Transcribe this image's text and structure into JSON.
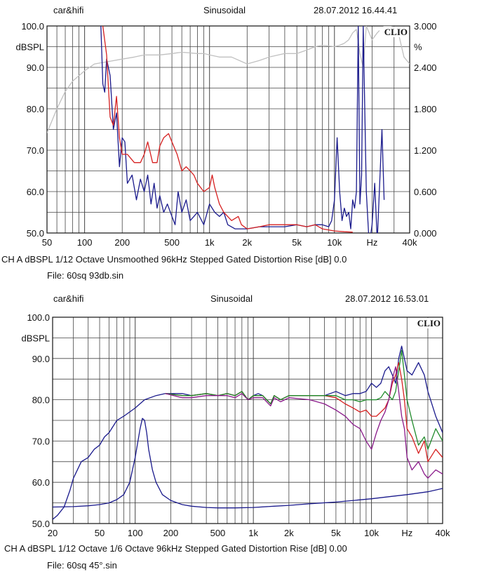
{
  "chart_data": [
    {
      "type": "line",
      "header": {
        "left": "car&hifi",
        "center": "Sinusoidal",
        "right": "28.07.2012 16.44.41"
      },
      "brand": "CLIO",
      "ylabel": "dBSPL",
      "ylabel_right": "%",
      "x_scale": "log",
      "xlim": [
        50,
        40000
      ],
      "ylim": [
        50,
        100
      ],
      "y_right_lim": [
        0,
        3
      ],
      "grid": true,
      "x_ticks": [
        "50",
        "100",
        "200",
        "500",
        "1k",
        "2k",
        "5k",
        "10k",
        "Hz",
        "40k"
      ],
      "y_ticks": [
        "100.0",
        "90.0",
        "80.0",
        "70.0",
        "60.0",
        "50.0"
      ],
      "y_right_ticks": [
        "3.000",
        "2.400",
        "1.800",
        "1.200",
        "0.600",
        "0.000"
      ],
      "info_line": "CH A   dBSPL     1/12 Octave    Unsmoothed    96kHz    Stepped     Gated       Distortion Rise [dB] 0.0",
      "file": "File: 60sq 93db.sin",
      "series": [
        {
          "color": "#c0c0c0",
          "axis": "right",
          "x": [
            50,
            60,
            70,
            80,
            100,
            120,
            150,
            200,
            250,
            300,
            400,
            500,
            600,
            800,
            900,
            1000,
            1200,
            1500,
            2000,
            2500,
            3000,
            4000,
            5000,
            6000,
            7000,
            8000,
            10000,
            11000,
            12000,
            13000,
            14000,
            15000,
            16000,
            17000,
            18000,
            20000,
            22000,
            25000,
            28000,
            32000,
            36000,
            40000
          ],
          "y": [
            1.45,
            1.8,
            2.05,
            2.2,
            2.35,
            2.45,
            2.48,
            2.52,
            2.55,
            2.58,
            2.58,
            2.6,
            2.62,
            2.6,
            2.6,
            2.58,
            2.55,
            2.55,
            2.45,
            2.5,
            2.55,
            2.6,
            2.6,
            2.65,
            2.7,
            2.72,
            2.7,
            2.72,
            2.75,
            2.8,
            2.9,
            2.95,
            2.6,
            2.4,
            3.0,
            2.8,
            2.9,
            3.0,
            3.0,
            2.95,
            2.55,
            2.45
          ]
        },
        {
          "color": "#1a1a8c",
          "x": [
            135,
            140,
            145,
            150,
            160,
            170,
            180,
            190,
            200,
            210,
            220,
            240,
            260,
            280,
            300,
            320,
            340,
            360,
            380,
            400,
            430,
            460,
            500,
            530,
            560,
            600,
            650,
            700,
            750,
            800,
            900,
            1000,
            1100,
            1200,
            1300,
            1400,
            1600,
            1800,
            2000,
            2500,
            3000,
            4000,
            5000,
            6000,
            7000,
            8000,
            9000,
            9500,
            10000,
            10500,
            11000,
            11500,
            12000,
            12500,
            13000,
            13500,
            14000,
            14500,
            15000,
            15500,
            16000,
            16500,
            17000,
            18000,
            19000,
            20000,
            21000,
            22000,
            24000,
            25000
          ],
          "y": [
            100,
            86,
            84,
            92,
            88,
            75,
            79,
            66,
            73,
            72,
            62,
            64,
            58,
            63,
            60,
            64,
            57,
            62,
            56,
            59,
            55,
            57,
            54,
            52,
            60,
            55,
            58,
            53,
            54,
            55,
            52,
            57,
            55,
            54,
            55,
            52,
            51,
            51,
            51,
            51.5,
            51.5,
            51.5,
            52,
            51.5,
            52,
            52,
            51.5,
            53,
            58,
            73,
            60,
            53,
            56,
            54,
            55,
            51,
            58,
            56,
            60,
            100,
            57,
            64,
            100,
            60,
            45,
            52,
            62,
            48,
            75,
            58
          ]
        },
        {
          "color": "#d62020",
          "x": [
            140,
            150,
            160,
            170,
            180,
            190,
            200,
            220,
            250,
            280,
            300,
            320,
            350,
            380,
            400,
            430,
            470,
            500,
            550,
            600,
            650,
            700,
            750,
            800,
            900,
            1000,
            1050,
            1100,
            1200,
            1300,
            1500,
            1700,
            1800,
            2000,
            2500,
            3000,
            4000,
            5000,
            6000,
            7000,
            8000,
            10000,
            12000,
            14000
          ],
          "y": [
            100,
            93,
            78,
            76,
            83,
            73,
            69,
            69,
            67,
            67,
            69,
            72,
            67,
            67,
            71,
            73,
            74,
            72,
            69,
            65,
            66,
            65,
            64,
            62,
            60,
            61,
            64,
            61,
            57,
            55,
            53,
            54,
            52,
            51,
            51.5,
            52,
            52,
            52,
            51.5,
            52,
            51,
            50.5,
            50.3,
            50.2
          ]
        }
      ]
    },
    {
      "type": "line",
      "header": {
        "left": "car&hifi",
        "center": "Sinusoidal",
        "right": "28.07.2012 16.53.01"
      },
      "brand": "CLIO",
      "ylabel": "dBSPL",
      "x_scale": "log",
      "xlim": [
        20,
        40000
      ],
      "ylim": [
        50,
        100
      ],
      "grid": true,
      "x_ticks": [
        "20",
        "50",
        "100",
        "200",
        "500",
        "1k",
        "2k",
        "5k",
        "10k",
        "Hz",
        "40k"
      ],
      "y_ticks": [
        "100.0",
        "90.0",
        "80.0",
        "70.0",
        "60.0",
        "50.0"
      ],
      "info_line": "CH A    dBSPL      1/12 Octave     1/6 Octave    96kHz    Stepped     Gated      Distortion Rise [dB] 0.00",
      "file": "File: 60sq 45°.sin",
      "series": [
        {
          "color": "#1a1a8c",
          "x": [
            20,
            22,
            25,
            28,
            30,
            35,
            40,
            45,
            50,
            55,
            60,
            70,
            80,
            100,
            120,
            150,
            180,
            200,
            250,
            300,
            400,
            500,
            600,
            700,
            800,
            900,
            1000,
            1100,
            1200,
            1400,
            1500,
            1700,
            2000,
            2500,
            3000,
            4000,
            5000,
            6000,
            7000,
            8000,
            9000,
            10000,
            11000,
            12000,
            13000,
            14000,
            15000,
            16000,
            17000,
            18000,
            20000,
            22000,
            25000,
            28000,
            30000,
            35000,
            40000
          ],
          "y": [
            51,
            52,
            54,
            58,
            61,
            65,
            66,
            68,
            69,
            71,
            72,
            75,
            76,
            78,
            80,
            81,
            81.5,
            81.5,
            81.5,
            81,
            81.5,
            81,
            81.5,
            81,
            82,
            80,
            81,
            81.5,
            81,
            79,
            81,
            80,
            81,
            81,
            81,
            81,
            82,
            81,
            81.5,
            81.5,
            82,
            84,
            83,
            84,
            87,
            88,
            86,
            84,
            90,
            93,
            87,
            86,
            89,
            86,
            82,
            76,
            72
          ]
        },
        {
          "color": "#1a1a8c",
          "x": [
            20,
            30,
            40,
            50,
            60,
            70,
            80,
            90,
            100,
            110,
            115,
            120,
            125,
            130,
            140,
            150,
            170,
            200,
            250,
            300,
            400,
            500,
            700,
            1000,
            1500,
            2000,
            3000,
            5000,
            7000,
            10000,
            15000,
            20000,
            30000,
            40000
          ],
          "y": [
            54,
            54.1,
            54.3,
            54.6,
            55,
            55.8,
            57,
            60,
            66,
            73,
            75.5,
            75,
            72,
            68,
            63,
            60,
            57,
            55.6,
            54.6,
            54.2,
            53.9,
            53.8,
            53.8,
            53.9,
            54.2,
            54.4,
            54.8,
            55.2,
            55.6,
            56,
            56.6,
            57,
            57.7,
            58.5
          ]
        },
        {
          "color": "#d62020",
          "x": [
            180,
            250,
            300,
            400,
            500,
            600,
            700,
            800,
            900,
            1000,
            1200,
            1400,
            1500,
            1700,
            2000,
            3000,
            4000,
            5000,
            6000,
            7000,
            8000,
            9000,
            10000,
            11000,
            12000,
            13000,
            14000,
            15000,
            16000,
            17000,
            18000,
            19000,
            20000,
            22000,
            25000,
            28000,
            30000,
            35000,
            40000
          ],
          "y": [
            81.5,
            81,
            81,
            81.5,
            81,
            81.5,
            81,
            82,
            80,
            81,
            81,
            79,
            81,
            80,
            81,
            81,
            81,
            80.5,
            79,
            78,
            77,
            77.5,
            76,
            76,
            77,
            78,
            80,
            84,
            86,
            89,
            85,
            80,
            73,
            71,
            67,
            70,
            65,
            68,
            66
          ]
        },
        {
          "color": "#1f8a2a",
          "x": [
            180,
            250,
            300,
            400,
            500,
            600,
            700,
            800,
            900,
            1000,
            1200,
            1400,
            1500,
            1700,
            2000,
            3000,
            4000,
            5000,
            6000,
            7000,
            8000,
            9000,
            10000,
            11000,
            12000,
            13000,
            14000,
            15000,
            16000,
            17000,
            18000,
            19000,
            20000,
            22000,
            25000,
            28000,
            30000,
            35000,
            40000
          ],
          "y": [
            81.5,
            81,
            81,
            81.5,
            81,
            81.5,
            81,
            82,
            80,
            81,
            81,
            79,
            81,
            80,
            81,
            81,
            81,
            81,
            80,
            80,
            79.5,
            80,
            80,
            80,
            80.5,
            82,
            81,
            80,
            82,
            87,
            92,
            86,
            80,
            75,
            69,
            71,
            68,
            73,
            70
          ]
        },
        {
          "color": "#8a1a8a",
          "x": [
            180,
            250,
            300,
            400,
            500,
            600,
            700,
            800,
            900,
            1000,
            1200,
            1400,
            1500,
            1700,
            2000,
            3000,
            4000,
            5000,
            6000,
            7000,
            8000,
            9000,
            10000,
            11000,
            12000,
            13000,
            14000,
            15000,
            16000,
            17000,
            18000,
            19000,
            20000,
            22000,
            25000,
            28000,
            30000,
            35000,
            40000
          ],
          "y": [
            81.5,
            80.5,
            80.5,
            81,
            81,
            81,
            80.5,
            81.5,
            80,
            80.5,
            80.5,
            78.5,
            80.5,
            79.5,
            80.5,
            80,
            79,
            77.5,
            76,
            74,
            73,
            70,
            68,
            72,
            75,
            77,
            80,
            85,
            88,
            82,
            76,
            73,
            66,
            63,
            65,
            62,
            61,
            63,
            62
          ]
        }
      ]
    }
  ]
}
